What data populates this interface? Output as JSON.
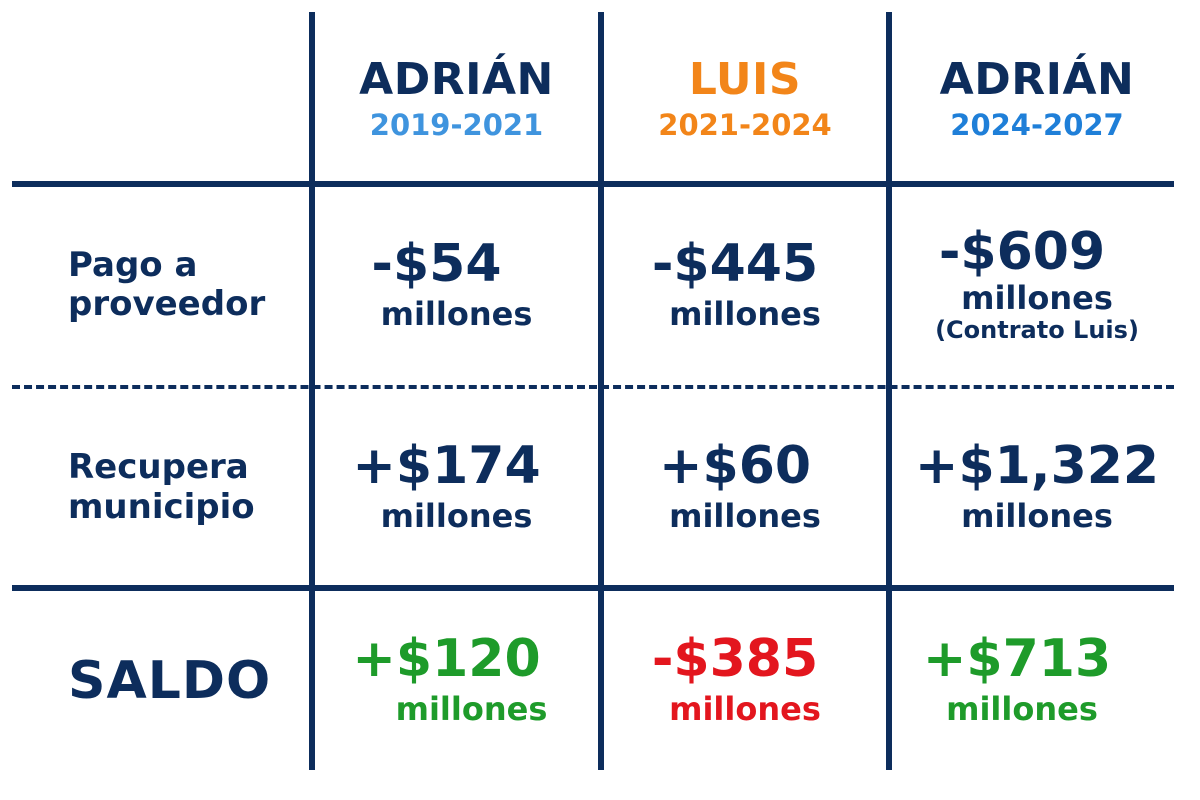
{
  "colors": {
    "navy": "#0d2d5c",
    "light_blue": "#3f94de",
    "blue": "#1f7fd8",
    "orange": "#f28519",
    "green": "#1e9b2a",
    "red": "#e3161e"
  },
  "headers": [
    {
      "name": "ADRIÁN",
      "years": "2019-2021",
      "name_color": "#0d2d5c",
      "years_color": "#3f94de"
    },
    {
      "name": "LUIS",
      "years": "2021-2024",
      "name_color": "#f28519",
      "years_color": "#f28519"
    },
    {
      "name": "ADRIÁN",
      "years": "2024-2027",
      "name_color": "#0d2d5c",
      "years_color": "#1f7fd8"
    }
  ],
  "rows": {
    "pago": {
      "label_line1": "Pago a",
      "label_line2": "proveedor",
      "cells": [
        {
          "amount": "-$54",
          "unit": "millones"
        },
        {
          "amount": "-$445",
          "unit": "millones"
        },
        {
          "amount": "-$609",
          "unit": "millones",
          "note": "(Contrato Luis)"
        }
      ]
    },
    "recupera": {
      "label_line1": "Recupera",
      "label_line2": "municipio",
      "cells": [
        {
          "amount": "+$174",
          "unit": "millones"
        },
        {
          "amount": "+$60",
          "unit": "millones"
        },
        {
          "amount": "+$1,322",
          "unit": "millones"
        }
      ]
    },
    "saldo": {
      "label": "SALDO",
      "cells": [
        {
          "amount": "+$120",
          "unit": "millones",
          "tone": "green"
        },
        {
          "amount": "-$385",
          "unit": "millones",
          "tone": "red"
        },
        {
          "amount": "+$713",
          "unit": "millones",
          "tone": "green"
        }
      ]
    }
  }
}
